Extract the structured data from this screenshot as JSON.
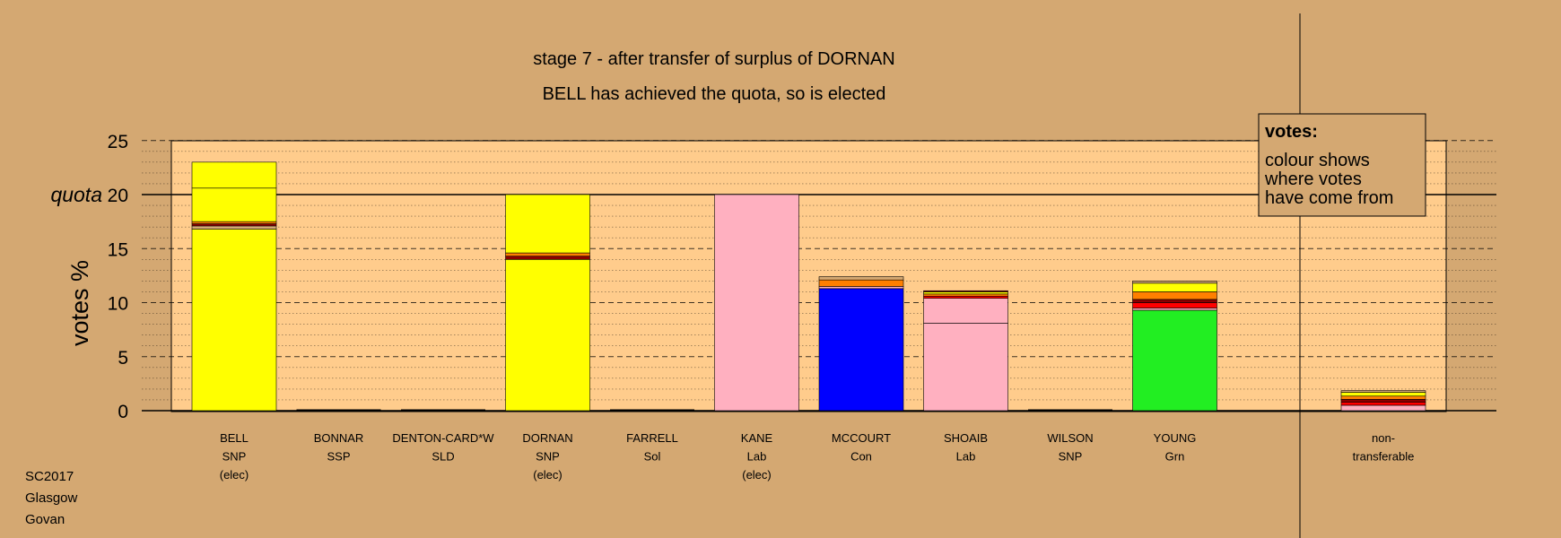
{
  "chart_data": {
    "type": "bar",
    "stacked": true,
    "title": "stage 7 - after transfer of surplus of DORNAN",
    "subtitle": "BELL has achieved the quota, so is elected",
    "ylabel": "votes %",
    "ylim": [
      0,
      25
    ],
    "yticks": [
      "0",
      "5",
      "10",
      "15",
      "20",
      "25"
    ],
    "quota": {
      "label": "quota",
      "value": 20
    },
    "grid": true,
    "legend": {
      "placement": "top-right",
      "heading": "votes:",
      "lines": [
        "colour shows",
        "where votes",
        "have come from"
      ]
    },
    "categories": [
      {
        "name": "BELL",
        "party": "SNP",
        "status": "(elec)",
        "segments": [
          {
            "value": 16.8,
            "color": "#ffff00"
          },
          {
            "value": 0.3,
            "color": "#d4a872"
          },
          {
            "value": 0.2,
            "color": "#8b0000"
          },
          {
            "value": 0.2,
            "color": "#ff7f00"
          },
          {
            "value": 3.1,
            "color": "#ffff00"
          },
          {
            "value": 2.4,
            "color": "#ffff00"
          }
        ]
      },
      {
        "name": "BONNAR",
        "party": "SSP",
        "status": "",
        "segments": []
      },
      {
        "name": "DENTON-CARD*W",
        "party": "SLD",
        "status": "",
        "segments": []
      },
      {
        "name": "DORNAN",
        "party": "SNP",
        "status": "(elec)",
        "segments": [
          {
            "value": 14.0,
            "color": "#ffff00"
          },
          {
            "value": 0.3,
            "color": "#8b0000"
          },
          {
            "value": 0.3,
            "color": "#ff7f00"
          },
          {
            "value": 5.4,
            "color": "#ffff00"
          }
        ]
      },
      {
        "name": "FARRELL",
        "party": "Sol",
        "status": "",
        "segments": []
      },
      {
        "name": "KANE",
        "party": "Lab",
        "status": "(elec)",
        "segments": [
          {
            "value": 20.0,
            "color": "#ffb0c0"
          }
        ]
      },
      {
        "name": "MCCOURT",
        "party": "Con",
        "status": "",
        "segments": [
          {
            "value": 11.3,
            "color": "#0000ff"
          },
          {
            "value": 0.2,
            "color": "#ffb0c0"
          },
          {
            "value": 0.6,
            "color": "#ff7f00"
          },
          {
            "value": 0.3,
            "color": "#d4a872"
          }
        ]
      },
      {
        "name": "SHOAIB",
        "party": "Lab",
        "status": "",
        "segments": [
          {
            "value": 8.1,
            "color": "#ffb0c0"
          },
          {
            "value": 2.3,
            "color": "#ffb0c0"
          },
          {
            "value": 0.2,
            "color": "#ff0000"
          },
          {
            "value": 0.2,
            "color": "#ff7f00"
          },
          {
            "value": 0.2,
            "color": "#ffff00"
          },
          {
            "value": 0.1,
            "color": "#8b0000"
          }
        ]
      },
      {
        "name": "WILSON",
        "party": "SNP",
        "status": "",
        "segments": []
      },
      {
        "name": "YOUNG",
        "party": "Grn",
        "status": "",
        "segments": [
          {
            "value": 9.3,
            "color": "#22ee22"
          },
          {
            "value": 0.2,
            "color": "#ffb0c0"
          },
          {
            "value": 0.5,
            "color": "#ff0000"
          },
          {
            "value": 0.3,
            "color": "#8b0000"
          },
          {
            "value": 0.7,
            "color": "#ff7f00"
          },
          {
            "value": 0.8,
            "color": "#ffff00"
          },
          {
            "value": 0.2,
            "color": "#d4a872"
          }
        ]
      }
    ],
    "nontransferable": {
      "label_lines": [
        "non-",
        "transferable"
      ],
      "segments": [
        {
          "value": 0.5,
          "color": "#ffb0c0"
        },
        {
          "value": 0.3,
          "color": "#ff0000"
        },
        {
          "value": 0.25,
          "color": "#8b0000"
        },
        {
          "value": 0.3,
          "color": "#ff7f00"
        },
        {
          "value": 0.35,
          "color": "#ffff00"
        },
        {
          "value": 0.15,
          "color": "#d4a872"
        }
      ]
    }
  },
  "footer": [
    "SC2017",
    "Glasgow",
    "Govan"
  ],
  "colors": {
    "background": "#d4a872",
    "plot_area": "#ffcc8c",
    "axis": "#000000"
  }
}
